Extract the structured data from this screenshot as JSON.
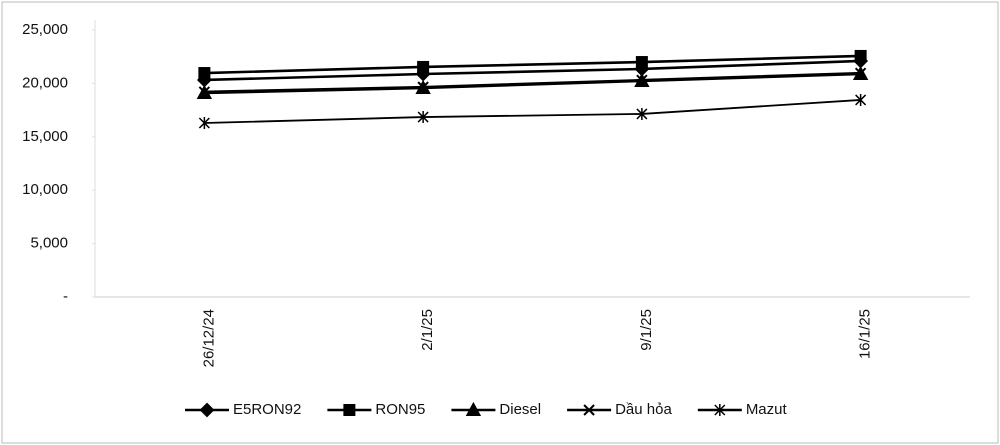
{
  "chart_data": {
    "type": "line",
    "categories": [
      "26/12/24",
      "2/1/25",
      "9/1/25",
      "16/1/25"
    ],
    "series": [
      {
        "name": "E5RON92",
        "color": "#000000",
        "marker": "diamond",
        "values": [
          20320,
          20880,
          21350,
          22100
        ]
      },
      {
        "name": "RON95",
        "color": "#000000",
        "marker": "square",
        "values": [
          20970,
          21540,
          22000,
          22570
        ]
      },
      {
        "name": "Diesel",
        "color": "#000000",
        "marker": "triangle",
        "values": [
          19100,
          19570,
          20230,
          20880
        ]
      },
      {
        "name": "Dầu hỏa",
        "color": "#000000",
        "marker": "x",
        "values": [
          19200,
          19650,
          20300,
          20960
        ]
      },
      {
        "name": "Mazut",
        "color": "#000000",
        "marker": "star",
        "values": [
          16290,
          16850,
          17140,
          18450
        ]
      }
    ],
    "ylim": [
      0,
      25000
    ],
    "yticks": [
      {
        "value": 0,
        "label": "-"
      },
      {
        "value": 5000,
        "label": "5,000"
      },
      {
        "value": 10000,
        "label": "10,000"
      },
      {
        "value": 15000,
        "label": "15,000"
      },
      {
        "value": 20000,
        "label": "20,000"
      },
      {
        "value": 25000,
        "label": "25,000"
      }
    ],
    "legend": "bottom"
  }
}
